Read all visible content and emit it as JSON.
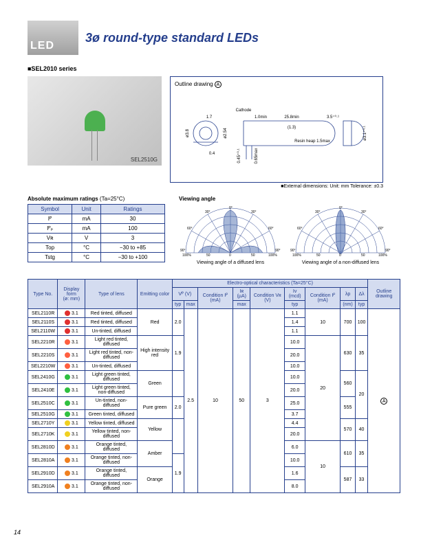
{
  "logo": "LED",
  "title": "3ø round-type standard LEDs",
  "series_label": "■SEL2010 series",
  "photo_label": "SEL2510G",
  "outline_title": "Outline drawing",
  "outline_drawing": {
    "cathode": "Cathode",
    "dims": [
      "1.7",
      "1.0min",
      "25.8min",
      "3.5",
      "(1.3)",
      "0.4",
      "ø3.8",
      "ø2.54",
      "0.45",
      "0.65max",
      "Resin heap 1.5max",
      "ø3.1"
    ]
  },
  "ext_dim": "■External dimensions:  Unit: mm  Tolerance: ±0.3",
  "ratings_title": "Absolute maximum ratings",
  "ratings_cond": "(Ta=25°C)",
  "ratings_headers": [
    "Symbol",
    "Unit",
    "Ratings"
  ],
  "ratings_rows": [
    [
      "Iᴾ",
      "mA",
      "30"
    ],
    [
      "Iᴾₚ",
      "mA",
      "100"
    ],
    [
      "Vʀ",
      "V",
      "3"
    ],
    [
      "Top",
      "°C",
      "−30 to +85"
    ],
    [
      "Tstg",
      "°C",
      "−30 to +100"
    ]
  ],
  "va_title": "Viewing angle",
  "va_diffused": "Viewing angle of a diffused lens",
  "va_nondiffused": "Viewing angle of a non-diffused lens",
  "va_angles": [
    "0°",
    "30°",
    "60°",
    "90°"
  ],
  "va_pcts": [
    "100%",
    "50",
    "0",
    "50",
    "100%"
  ],
  "big_header_eoc": "Electro-optical characteristics (Ta=25°C)",
  "big_headers": {
    "type_no": "Type No.",
    "display_form": "Display form",
    "display_form_sub": "(ø: mm)",
    "type_lens": "Type of lens",
    "emit_color": "Emitting color",
    "vf": "Vᴾ (V)",
    "vf_typ": "typ",
    "vf_max": "max",
    "vf_cond": "Condition Iᴾ (mA)",
    "ir": "Iʀ (µA)",
    "ir_max": "max",
    "ir_cond": "Condition Vʀ (V)",
    "iv": "Iᴠ (mcd)",
    "iv_typ": "typ",
    "iv_cond": "Condition Iᴾ (mA)",
    "lp": "λp",
    "lp_sub": "(nm)",
    "dl": "Δλ",
    "dl_sub": "typ",
    "outline": "Outline drawing"
  },
  "rows": [
    {
      "tn": "SEL2110R",
      "dot": "red",
      "df": "3.1",
      "lens": "Red tinted, diffused",
      "ec": "Red",
      "vft": "2.0",
      "iv": "1.1",
      "ivc": "10",
      "lp": "700",
      "dl": "100"
    },
    {
      "tn": "SEL2110S",
      "dot": "red",
      "df": "3.1",
      "lens": "Red tinted, diffused",
      "iv": "1.4"
    },
    {
      "tn": "SEL2110W",
      "dot": "red",
      "df": "3.1",
      "lens": "Un-tinted, diffused",
      "iv": "1.1"
    },
    {
      "tn": "SEL2210R",
      "dot": "lred",
      "df": "3.1",
      "lens": "Light red tinted, diffused",
      "ec": "High intensity red",
      "vft": "1.9",
      "iv": "10.0",
      "ivc": "20",
      "lp": "630",
      "dl": "35"
    },
    {
      "tn": "SEL2210S",
      "dot": "lred",
      "df": "3.1",
      "lens": "Light red tinted, non-diffused",
      "iv": "20.0"
    },
    {
      "tn": "SEL2210W",
      "dot": "lred",
      "df": "3.1",
      "lens": "Un-tinted, diffused",
      "iv": "10.0"
    },
    {
      "tn": "SEL2410G",
      "dot": "green",
      "df": "3.1",
      "lens": "Light green tinted, diffused",
      "ec": "Green",
      "iv": "10.0",
      "lp": "560",
      "dl": "20"
    },
    {
      "tn": "SEL2410E",
      "dot": "green",
      "df": "3.1",
      "lens": "Light green tinted, non-diffused",
      "iv": "20.0"
    },
    {
      "tn": "SEL2510C",
      "dot": "green",
      "df": "3.1",
      "lens": "Un-tinted, non-diffused",
      "ec": "Pure green",
      "vft": "2.0",
      "iv": "25.0",
      "lp": "555"
    },
    {
      "tn": "SEL2510G",
      "dot": "green",
      "df": "3.1",
      "lens": "Green tinted, diffused",
      "iv": "3.7"
    },
    {
      "tn": "SEL2710Y",
      "dot": "yellow",
      "df": "3.1",
      "lens": "Yellow tinted, diffused",
      "ec": "Yellow",
      "iv": "4.4",
      "lp": "570",
      "dl": "40"
    },
    {
      "tn": "SEL2710K",
      "dot": "yellow",
      "df": "3.1",
      "lens": "Yellow tinted, non-diffused",
      "iv": "20.0"
    },
    {
      "tn": "SEL2810D",
      "dot": "orange",
      "df": "3.1",
      "lens": "Orange tinted, diffused",
      "ec": "Amber",
      "iv": "6.0",
      "ivc": "10",
      "lp": "610",
      "dl": "35"
    },
    {
      "tn": "SEL2810A",
      "dot": "orange",
      "df": "3.1",
      "lens": "Orange tinted, non-diffused",
      "vft": "1.9",
      "iv": "10.0"
    },
    {
      "tn": "SEL2910D",
      "dot": "orange",
      "df": "3.1",
      "lens": "Orange tinted, diffused",
      "ec": "Orange",
      "iv": "1.6",
      "lp": "587",
      "dl": "33"
    },
    {
      "tn": "SEL2910A",
      "dot": "orange",
      "df": "3.1",
      "lens": "Orange tinted, non-diffused",
      "iv": "8.0"
    }
  ],
  "shared": {
    "vfm": "2.5",
    "vfc": "10",
    "irm": "50",
    "irc": "3"
  },
  "page": "14"
}
